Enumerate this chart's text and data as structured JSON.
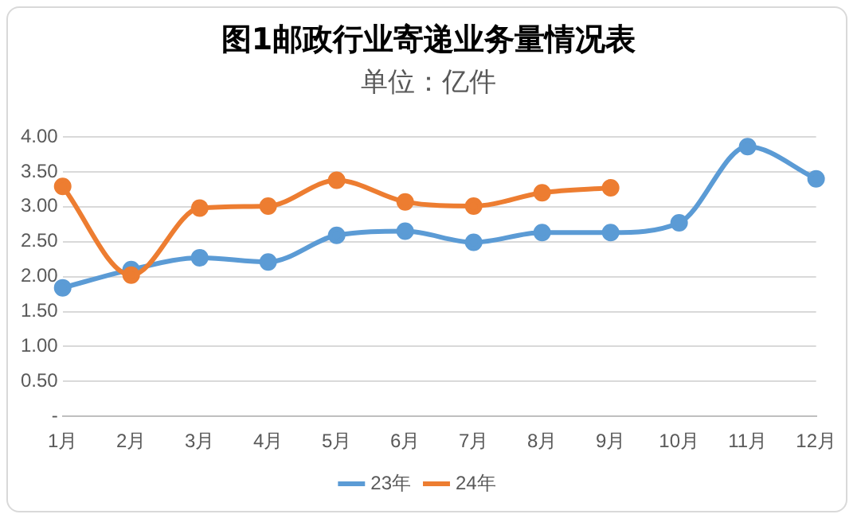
{
  "chart_data": {
    "type": "line",
    "title": "图1邮政行业寄递业务量情况表",
    "subtitle": "单位：亿件",
    "categories": [
      "1月",
      "2月",
      "3月",
      "4月",
      "5月",
      "6月",
      "7月",
      "8月",
      "9月",
      "10月",
      "11月",
      "12月"
    ],
    "series": [
      {
        "name": "23年",
        "color": "#5b9bd5",
        "values": [
          1.84,
          2.1,
          2.27,
          2.21,
          2.59,
          2.65,
          2.49,
          2.63,
          2.63,
          2.77,
          3.86,
          3.4
        ]
      },
      {
        "name": "24年",
        "color": "#ed7d31",
        "values": [
          3.29,
          2.02,
          2.98,
          3.01,
          3.38,
          3.07,
          3.01,
          3.2,
          3.27,
          null,
          null,
          null
        ]
      }
    ],
    "ylim": [
      0,
      4
    ],
    "yticks": [
      {
        "value": 0,
        "label": "-"
      },
      {
        "value": 0.5,
        "label": "0.50"
      },
      {
        "value": 1,
        "label": "1.00"
      },
      {
        "value": 1.5,
        "label": "1.50"
      },
      {
        "value": 2,
        "label": "2.00"
      },
      {
        "value": 2.5,
        "label": "2.50"
      },
      {
        "value": 3,
        "label": "3.00"
      },
      {
        "value": 3.5,
        "label": "3.50"
      },
      {
        "value": 4,
        "label": "4.00"
      }
    ],
    "grid": "y",
    "legend": "bottom",
    "marker": "circle",
    "line_style": "solid"
  }
}
